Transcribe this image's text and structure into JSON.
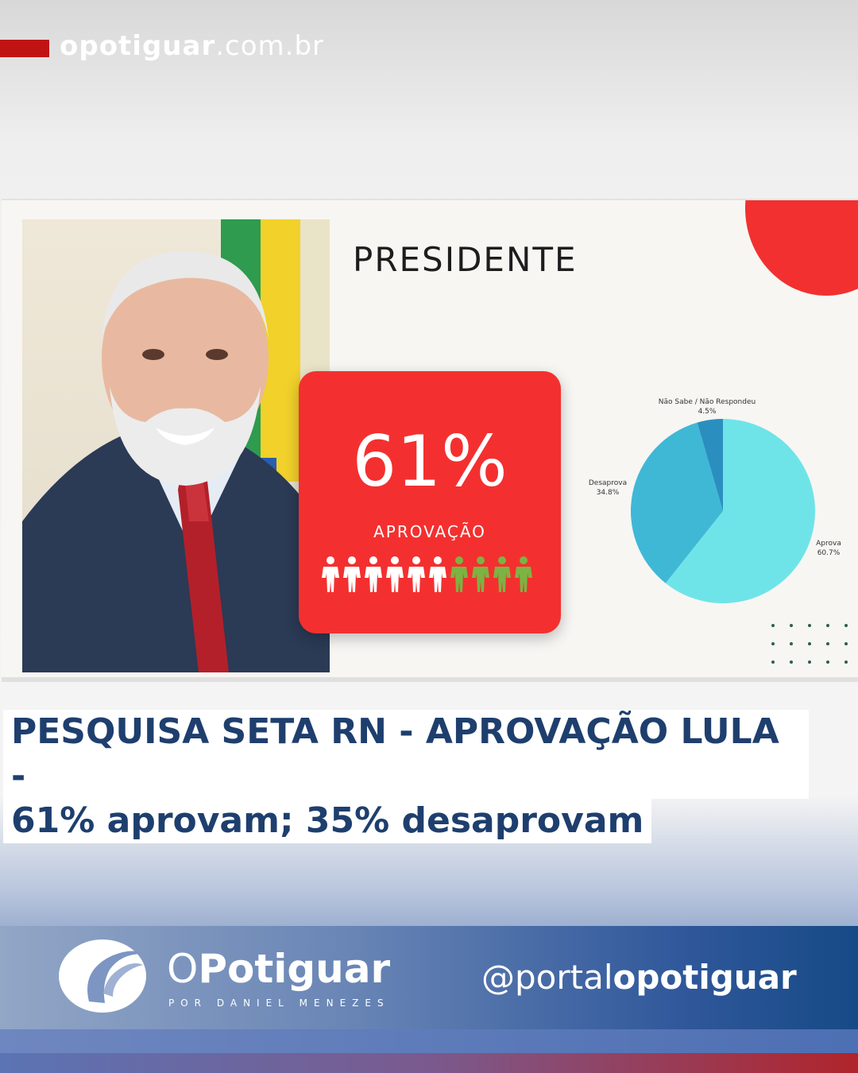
{
  "header": {
    "site_bold": "opotiguar",
    "site_rest": ".com.br"
  },
  "slide": {
    "title": "PRESIDENTE",
    "stat_value": "61%",
    "stat_label": "APROVAÇÃO",
    "people_total": 10,
    "people_white": 6,
    "pie": [
      {
        "label": "Aprova",
        "value": "60.7%",
        "pct": 60.7,
        "color": "#6fe4e8"
      },
      {
        "label": "Desaprova",
        "value": "34.8%",
        "pct": 34.8,
        "color": "#3fb8d6"
      },
      {
        "label": "Não Sabe / Não Respondeu",
        "value": "4.5%",
        "pct": 4.5,
        "color": "#2a8fbf"
      }
    ]
  },
  "headline": {
    "line1": "PESQUISA SETA RN - APROVAÇÃO LULA -",
    "line2": "61% aprovam; 35% desaprovam"
  },
  "footer": {
    "logo_main": "Potiguar",
    "logo_prefix": "O",
    "logo_sub": "POR DANIEL MENEZES",
    "handle_prefix": "@portal",
    "handle_bold": "opotiguar"
  },
  "colors": {
    "brand_red": "#f3302f",
    "headline_blue": "#1e3f6e",
    "people_green": "#7cb342"
  }
}
